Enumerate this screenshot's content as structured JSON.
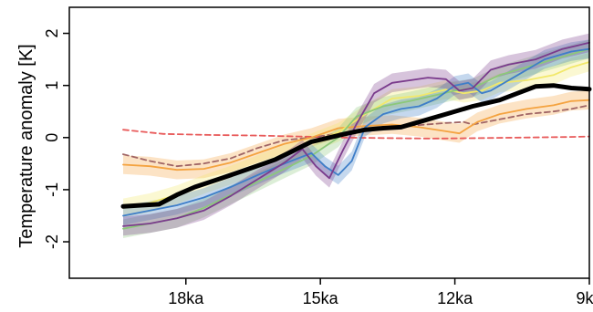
{
  "chart_data": {
    "type": "line",
    "title": "",
    "xlabel": "",
    "ylabel": "Temperature anomaly [K]",
    "xlim": [
      20.6,
      9.0
    ],
    "ylim": [
      -2.7,
      2.5
    ],
    "x_ticks": [
      {
        "value": 18,
        "label": "18ka"
      },
      {
        "value": 15,
        "label": "15ka"
      },
      {
        "value": 12,
        "label": "12ka"
      },
      {
        "value": 9,
        "label": "9ka"
      }
    ],
    "y_ticks": [
      {
        "value": -2,
        "label": "-2"
      },
      {
        "value": -1,
        "label": "-1"
      },
      {
        "value": 0,
        "label": "0"
      },
      {
        "value": 1,
        "label": "1"
      },
      {
        "value": 2,
        "label": "2"
      }
    ],
    "grid": false,
    "series": [
      {
        "color": "#e85a5a",
        "style": "dashed",
        "band": false,
        "points": [
          [
            19.4,
            0.15
          ],
          [
            18.5,
            0.07
          ],
          [
            17.5,
            0.05
          ],
          [
            16.5,
            0.04
          ],
          [
            15.5,
            0.02
          ],
          [
            14.5,
            0.0
          ],
          [
            13.5,
            -0.01
          ],
          [
            12.5,
            -0.02
          ],
          [
            11.5,
            -0.01
          ],
          [
            10.5,
            0.0
          ],
          [
            9.5,
            0.01
          ],
          [
            9.0,
            0.02
          ]
        ]
      },
      {
        "color": "#a06565",
        "style": "dashed",
        "band": false,
        "points": [
          [
            19.4,
            -0.32
          ],
          [
            18.8,
            -0.45
          ],
          [
            18.2,
            -0.55
          ],
          [
            17.6,
            -0.5
          ],
          [
            17.0,
            -0.4
          ],
          [
            16.4,
            -0.2
          ],
          [
            15.8,
            -0.05
          ],
          [
            15.2,
            0.0
          ],
          [
            14.6,
            0.08
          ],
          [
            14.0,
            0.12
          ],
          [
            13.4,
            0.18
          ],
          [
            12.8,
            0.24
          ],
          [
            12.2,
            0.28
          ],
          [
            11.8,
            0.3
          ],
          [
            11.6,
            0.25
          ],
          [
            11.0,
            0.35
          ],
          [
            10.4,
            0.45
          ],
          [
            9.8,
            0.5
          ],
          [
            9.4,
            0.55
          ],
          [
            9.0,
            0.62
          ]
        ]
      },
      {
        "color": "#f4a340",
        "style": "solid",
        "band": true,
        "points": [
          [
            19.4,
            -0.52
          ],
          [
            18.8,
            -0.55
          ],
          [
            18.2,
            -0.62
          ],
          [
            17.6,
            -0.6
          ],
          [
            17.0,
            -0.48
          ],
          [
            16.4,
            -0.3
          ],
          [
            15.8,
            -0.12
          ],
          [
            15.2,
            0.0
          ],
          [
            14.6,
            0.18
          ],
          [
            14.0,
            0.22
          ],
          [
            13.4,
            0.25
          ],
          [
            12.8,
            0.2
          ],
          [
            12.2,
            0.12
          ],
          [
            11.9,
            0.08
          ],
          [
            11.5,
            0.3
          ],
          [
            11.0,
            0.45
          ],
          [
            10.4,
            0.55
          ],
          [
            9.8,
            0.62
          ],
          [
            9.4,
            0.7
          ],
          [
            9.0,
            0.72
          ]
        ]
      },
      {
        "color": "#f2e86a",
        "style": "solid",
        "band": true,
        "points": [
          [
            19.4,
            -1.35
          ],
          [
            18.8,
            -1.25
          ],
          [
            18.2,
            -1.1
          ],
          [
            17.6,
            -0.9
          ],
          [
            17.0,
            -0.72
          ],
          [
            16.4,
            -0.52
          ],
          [
            15.8,
            -0.32
          ],
          [
            15.2,
            -0.1
          ],
          [
            14.6,
            0.1
          ],
          [
            14.0,
            0.45
          ],
          [
            13.4,
            0.75
          ],
          [
            12.8,
            0.8
          ],
          [
            12.2,
            0.92
          ],
          [
            11.8,
            0.85
          ],
          [
            11.4,
            0.9
          ],
          [
            11.0,
            1.05
          ],
          [
            10.4,
            1.1
          ],
          [
            9.8,
            1.2
          ],
          [
            9.4,
            1.35
          ],
          [
            9.0,
            1.45
          ]
        ]
      },
      {
        "color": "#8cc87a",
        "style": "solid",
        "band": true,
        "points": [
          [
            19.4,
            -1.75
          ],
          [
            18.8,
            -1.65
          ],
          [
            18.2,
            -1.55
          ],
          [
            17.6,
            -1.35
          ],
          [
            17.0,
            -1.1
          ],
          [
            16.4,
            -0.85
          ],
          [
            15.8,
            -0.6
          ],
          [
            15.2,
            -0.35
          ],
          [
            14.6,
            0.0
          ],
          [
            14.2,
            0.4
          ],
          [
            13.6,
            0.6
          ],
          [
            13.0,
            0.7
          ],
          [
            12.4,
            0.82
          ],
          [
            12.0,
            0.9
          ],
          [
            11.6,
            0.95
          ],
          [
            11.0,
            1.2
          ],
          [
            10.4,
            1.35
          ],
          [
            9.8,
            1.5
          ],
          [
            9.4,
            1.6
          ],
          [
            9.0,
            1.7
          ]
        ]
      },
      {
        "color": "#3e7ec8",
        "style": "solid",
        "band": true,
        "points": [
          [
            19.4,
            -1.5
          ],
          [
            18.8,
            -1.4
          ],
          [
            18.2,
            -1.3
          ],
          [
            17.6,
            -1.15
          ],
          [
            17.0,
            -0.95
          ],
          [
            16.4,
            -0.72
          ],
          [
            15.8,
            -0.5
          ],
          [
            15.2,
            -0.3
          ],
          [
            14.9,
            -0.55
          ],
          [
            14.6,
            -0.72
          ],
          [
            14.3,
            -0.45
          ],
          [
            14.0,
            0.2
          ],
          [
            13.6,
            0.45
          ],
          [
            13.2,
            0.55
          ],
          [
            12.8,
            0.6
          ],
          [
            12.4,
            0.75
          ],
          [
            12.0,
            1.0
          ],
          [
            11.7,
            1.05
          ],
          [
            11.4,
            0.85
          ],
          [
            11.2,
            0.9
          ],
          [
            10.6,
            1.2
          ],
          [
            10.0,
            1.5
          ],
          [
            9.4,
            1.65
          ],
          [
            9.0,
            1.7
          ]
        ]
      },
      {
        "color": "#7a3b8c",
        "style": "solid",
        "band": true,
        "points": [
          [
            19.4,
            -1.7
          ],
          [
            18.8,
            -1.65
          ],
          [
            18.2,
            -1.55
          ],
          [
            17.6,
            -1.4
          ],
          [
            17.0,
            -1.12
          ],
          [
            16.4,
            -0.8
          ],
          [
            15.8,
            -0.48
          ],
          [
            15.4,
            -0.22
          ],
          [
            15.1,
            -0.55
          ],
          [
            14.8,
            -0.78
          ],
          [
            14.5,
            -0.25
          ],
          [
            14.2,
            0.25
          ],
          [
            13.8,
            0.85
          ],
          [
            13.4,
            1.05
          ],
          [
            13.0,
            1.1
          ],
          [
            12.6,
            1.15
          ],
          [
            12.2,
            1.12
          ],
          [
            11.9,
            0.9
          ],
          [
            11.6,
            0.95
          ],
          [
            11.2,
            1.3
          ],
          [
            10.8,
            1.4
          ],
          [
            10.2,
            1.5
          ],
          [
            9.6,
            1.7
          ],
          [
            9.0,
            1.82
          ]
        ]
      },
      {
        "color": "#000000",
        "style": "solid",
        "band": false,
        "thick": true,
        "points": [
          [
            19.4,
            -1.32
          ],
          [
            19.0,
            -1.3
          ],
          [
            18.6,
            -1.28
          ],
          [
            18.2,
            -1.1
          ],
          [
            17.8,
            -0.95
          ],
          [
            17.2,
            -0.78
          ],
          [
            16.6,
            -0.6
          ],
          [
            16.0,
            -0.42
          ],
          [
            15.6,
            -0.25
          ],
          [
            15.2,
            -0.08
          ],
          [
            14.8,
            0.0
          ],
          [
            14.4,
            0.08
          ],
          [
            14.0,
            0.15
          ],
          [
            13.6,
            0.18
          ],
          [
            13.2,
            0.2
          ],
          [
            12.8,
            0.3
          ],
          [
            12.2,
            0.45
          ],
          [
            11.6,
            0.6
          ],
          [
            11.0,
            0.72
          ],
          [
            10.6,
            0.85
          ],
          [
            10.2,
            0.98
          ],
          [
            9.8,
            1.0
          ],
          [
            9.4,
            0.95
          ],
          [
            9.0,
            0.93
          ]
        ]
      }
    ]
  }
}
